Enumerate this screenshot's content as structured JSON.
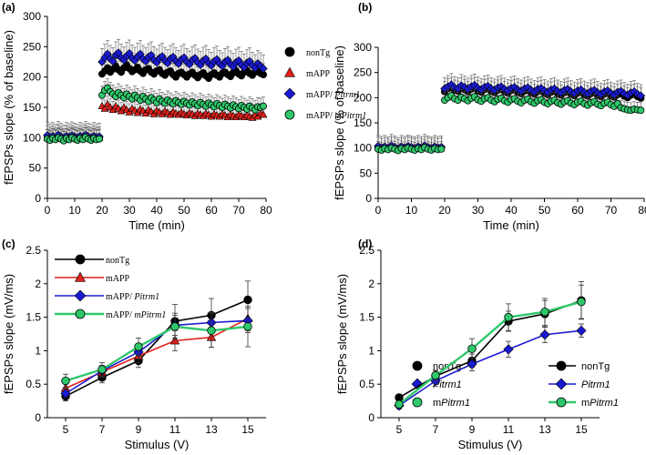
{
  "chart_data": [
    {
      "panel": "(a)",
      "type": "scatter",
      "xlabel": "Time (min)",
      "ylabel": "fEPSPs slope (% of baseline)",
      "xlim": [
        0,
        80
      ],
      "ylim": [
        0,
        300
      ],
      "xticks": [
        0,
        10,
        20,
        30,
        40,
        50,
        60,
        70,
        80
      ],
      "yticks": [
        0,
        50,
        100,
        150,
        200,
        250,
        300
      ],
      "legend_position": "right",
      "series": [
        {
          "name": "nonTg",
          "marker": "circle",
          "color": "#000000",
          "x_start": 0,
          "x_step": 1,
          "values": [
            102,
            99,
            101,
            98,
            103,
            100,
            97,
            101,
            99,
            102,
            100,
            98,
            101,
            99,
            103,
            100,
            98,
            101,
            99,
            100,
            205,
            210,
            215,
            208,
            213,
            218,
            212,
            208,
            215,
            220,
            214,
            209,
            212,
            216,
            210,
            206,
            212,
            214,
            208,
            205,
            210,
            212,
            206,
            203,
            208,
            210,
            204,
            200,
            206,
            208,
            204,
            200,
            205,
            208,
            203,
            199,
            204,
            207,
            202,
            198,
            204,
            207,
            203,
            200,
            206,
            208,
            204,
            201,
            207,
            210,
            205,
            202,
            208,
            211,
            206,
            203,
            208,
            210,
            206,
            204
          ],
          "error": 18
        },
        {
          "name": "mAPP",
          "marker": "triangle",
          "color": "#e0201a",
          "x_start": 0,
          "x_step": 1,
          "values": [
            100,
            98,
            101,
            99,
            102,
            100,
            97,
            101,
            99,
            102,
            100,
            98,
            101,
            99,
            103,
            100,
            98,
            101,
            99,
            100,
            152,
            148,
            155,
            150,
            146,
            152,
            148,
            144,
            150,
            146,
            142,
            148,
            145,
            141,
            147,
            144,
            140,
            146,
            143,
            139,
            145,
            142,
            139,
            144,
            141,
            138,
            143,
            140,
            138,
            142,
            139,
            137,
            141,
            139,
            136,
            140,
            138,
            136,
            140,
            138,
            135,
            139,
            137,
            135,
            139,
            137,
            134,
            138,
            136,
            134,
            138,
            136,
            134,
            137,
            135,
            133,
            137,
            135,
            140,
            138
          ],
          "error": 14
        },
        {
          "name": "mAPP/ Pitrm1",
          "name_plain": "mAPP/ ",
          "name_italic": "Pitrm1",
          "marker": "diamond",
          "color": "#1a1ad0",
          "x_start": 0,
          "x_step": 1,
          "values": [
            104,
            101,
            103,
            100,
            105,
            102,
            99,
            103,
            101,
            104,
            102,
            100,
            103,
            101,
            105,
            102,
            100,
            103,
            101,
            102,
            225,
            232,
            238,
            230,
            226,
            236,
            240,
            232,
            228,
            235,
            239,
            231,
            227,
            234,
            238,
            230,
            226,
            233,
            236,
            228,
            224,
            231,
            234,
            227,
            223,
            230,
            233,
            226,
            222,
            229,
            232,
            225,
            221,
            228,
            231,
            224,
            220,
            227,
            230,
            223,
            219,
            226,
            229,
            222,
            218,
            225,
            228,
            221,
            217,
            224,
            227,
            220,
            216,
            223,
            226,
            219,
            215,
            222,
            218,
            214
          ],
          "error": 22
        },
        {
          "name": "mAPP/ mPitrm1",
          "name_plain": "mAPP/ ",
          "name_italic": "mPitrm1",
          "marker": "circle",
          "color": "#2ec86b",
          "x_start": 0,
          "x_step": 1,
          "values": [
            98,
            96,
            99,
            97,
            100,
            98,
            95,
            99,
            97,
            100,
            98,
            96,
            99,
            97,
            101,
            98,
            96,
            99,
            97,
            98,
            170,
            178,
            182,
            176,
            172,
            168,
            174,
            170,
            166,
            172,
            168,
            164,
            170,
            166,
            162,
            168,
            164,
            160,
            166,
            162,
            158,
            164,
            160,
            157,
            162,
            159,
            156,
            161,
            158,
            155,
            160,
            157,
            154,
            159,
            156,
            153,
            158,
            155,
            152,
            157,
            154,
            151,
            156,
            153,
            150,
            155,
            152,
            149,
            154,
            151,
            148,
            153,
            150,
            147,
            152,
            149,
            146,
            151,
            150,
            152
          ],
          "error": 15
        }
      ]
    },
    {
      "panel": "(b)",
      "type": "scatter",
      "xlabel": "Time (min)",
      "ylabel": "fEPSPs slope (% of baseline)",
      "xlim": [
        0,
        80
      ],
      "ylim": [
        0,
        300
      ],
      "xticks": [
        0,
        10,
        20,
        30,
        40,
        50,
        60,
        70,
        80
      ],
      "yticks": [
        0,
        50,
        100,
        150,
        200,
        250,
        300
      ],
      "legend_position": "bottom-right",
      "series": [
        {
          "name": "nonTg",
          "marker": "circle",
          "color": "#000000",
          "x_start": 0,
          "x_step": 1,
          "values": [
            102,
            99,
            101,
            98,
            103,
            100,
            97,
            101,
            99,
            102,
            100,
            98,
            101,
            99,
            103,
            100,
            98,
            101,
            99,
            100,
            212,
            218,
            220,
            215,
            213,
            219,
            216,
            212,
            217,
            220,
            214,
            211,
            216,
            218,
            213,
            210,
            215,
            217,
            212,
            209,
            214,
            216,
            211,
            208,
            213,
            215,
            210,
            207,
            212,
            214,
            209,
            206,
            211,
            213,
            208,
            205,
            210,
            212,
            207,
            204,
            209,
            211,
            206,
            203,
            208,
            210,
            205,
            202,
            207,
            209,
            204,
            201,
            206,
            208,
            203,
            200,
            205,
            207,
            202,
            199
          ],
          "error": 20
        },
        {
          "name": "Pitrm1",
          "name_plain": "",
          "name_italic": "Pitrm1",
          "marker": "diamond",
          "color": "#1a1ad0",
          "x_start": 0,
          "x_step": 1,
          "values": [
            104,
            101,
            103,
            100,
            105,
            102,
            99,
            103,
            101,
            104,
            102,
            100,
            103,
            101,
            105,
            102,
            100,
            103,
            101,
            102,
            218,
            222,
            226,
            220,
            218,
            224,
            221,
            217,
            222,
            225,
            219,
            216,
            221,
            223,
            218,
            215,
            220,
            222,
            217,
            214,
            219,
            221,
            216,
            213,
            218,
            220,
            215,
            212,
            217,
            219,
            214,
            211,
            216,
            218,
            213,
            210,
            215,
            217,
            212,
            209,
            214,
            216,
            211,
            208,
            213,
            215,
            210,
            207,
            212,
            214,
            209,
            206,
            211,
            213,
            208,
            205,
            210,
            212,
            207,
            204
          ],
          "error": 22
        },
        {
          "name": "mPitrm1",
          "name_plain": "m",
          "name_italic": "Pitrm1",
          "marker": "circle",
          "color": "#2ec86b",
          "x_start": 0,
          "x_step": 1,
          "values": [
            98,
            96,
            99,
            97,
            100,
            98,
            95,
            99,
            97,
            100,
            98,
            96,
            99,
            97,
            101,
            98,
            96,
            99,
            97,
            98,
            195,
            200,
            204,
            198,
            195,
            201,
            198,
            194,
            199,
            202,
            196,
            193,
            198,
            200,
            195,
            192,
            197,
            199,
            194,
            191,
            196,
            198,
            193,
            190,
            195,
            197,
            192,
            189,
            194,
            196,
            191,
            188,
            193,
            195,
            190,
            187,
            192,
            194,
            189,
            186,
            191,
            193,
            188,
            185,
            190,
            192,
            187,
            184,
            189,
            191,
            186,
            183,
            188,
            180,
            178,
            176,
            175,
            177,
            176,
            175
          ],
          "error": 15
        }
      ]
    },
    {
      "panel": "(c)",
      "type": "line",
      "xlabel": "Stimulus (V)",
      "ylabel": "fEPSPs slope (mV/ms)",
      "xlim": [
        4,
        16
      ],
      "ylim": [
        0,
        2.5
      ],
      "xticks": [
        5,
        7,
        9,
        11,
        13,
        15
      ],
      "yticks": [
        0,
        0.5,
        1,
        1.5,
        2,
        2.5
      ],
      "ytick_labels": [
        "0",
        "0.5",
        "1",
        "1.5",
        "2",
        "2.5"
      ],
      "legend_position": "top-left",
      "x": [
        5,
        7,
        9,
        11,
        13,
        15
      ],
      "series": [
        {
          "name": "nonTg",
          "marker": "circle",
          "color": "#000000",
          "values": [
            0.32,
            0.6,
            0.85,
            1.44,
            1.53,
            1.76
          ],
          "errors": [
            0.07,
            0.08,
            0.1,
            0.25,
            0.25,
            0.28
          ]
        },
        {
          "name": "mAPP",
          "marker": "triangle",
          "color": "#e0201a",
          "values": [
            0.44,
            0.68,
            0.92,
            1.15,
            1.2,
            1.48
          ],
          "errors": [
            0.08,
            0.08,
            0.1,
            0.15,
            0.15,
            0.18
          ]
        },
        {
          "name": "mAPP/ Pitrm1",
          "name_plain": "mAPP/ ",
          "name_italic": "Pitrm1",
          "marker": "diamond",
          "color": "#1a1ad0",
          "values": [
            0.36,
            0.7,
            0.98,
            1.38,
            1.42,
            1.45
          ],
          "errors": [
            0.07,
            0.08,
            0.1,
            0.15,
            0.15,
            0.18
          ]
        },
        {
          "name": "mAPP/ mPitrm1",
          "name_plain": "mAPP/ ",
          "name_italic": "mPitrm1",
          "marker": "circle",
          "color": "#2ec86b",
          "values": [
            0.55,
            0.72,
            1.06,
            1.36,
            1.3,
            1.36
          ],
          "errors": [
            0.1,
            0.1,
            0.13,
            0.2,
            0.25,
            0.3
          ]
        }
      ]
    },
    {
      "panel": "(d)",
      "type": "line",
      "xlabel": "Stimulus (V)",
      "ylabel": "fEPSPs slope (mV/ms)",
      "xlim": [
        4,
        16
      ],
      "ylim": [
        0,
        2.5
      ],
      "xticks": [
        5,
        7,
        9,
        11,
        13,
        15
      ],
      "yticks": [
        0,
        0.5,
        1,
        1.5,
        2,
        2.5
      ],
      "ytick_labels": [
        "0",
        "0.5",
        "1",
        "1.5",
        "2",
        "2.5"
      ],
      "legend_position": "bottom-right",
      "x": [
        5,
        7,
        9,
        11,
        13,
        15
      ],
      "series": [
        {
          "name": "nonTg",
          "marker": "circle",
          "color": "#000000",
          "values": [
            0.3,
            0.62,
            0.85,
            1.44,
            1.55,
            1.75
          ],
          "errors": [
            0.05,
            0.08,
            0.1,
            0.15,
            0.2,
            0.28
          ]
        },
        {
          "name": "Pitrm1",
          "name_plain": "",
          "name_italic": "Pitrm1",
          "marker": "diamond",
          "color": "#1a1ad0",
          "values": [
            0.18,
            0.55,
            0.8,
            1.02,
            1.24,
            1.3
          ],
          "errors": [
            0.05,
            0.08,
            0.1,
            0.12,
            0.12,
            0.1
          ]
        },
        {
          "name": "mPitrm1",
          "name_plain": "m",
          "name_italic": "Pitrm1",
          "marker": "circle",
          "color": "#2ec86b",
          "values": [
            0.2,
            0.63,
            1.03,
            1.5,
            1.58,
            1.73
          ],
          "errors": [
            0.05,
            0.08,
            0.15,
            0.2,
            0.2,
            0.25
          ]
        }
      ]
    }
  ]
}
